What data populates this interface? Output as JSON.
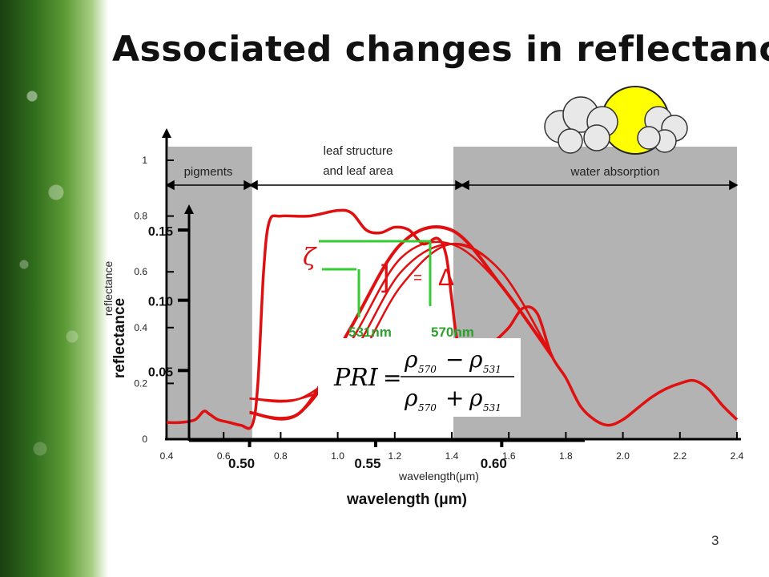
{
  "slide": {
    "title": "Associated changes in reflectance",
    "page_number": "3"
  },
  "colors": {
    "band_fill": "#b3b3b3",
    "curve": "#e01010",
    "marker": "#33cc33",
    "sun": "#ffff00"
  },
  "regions": {
    "pigments": "pigments",
    "leaf_structure_line1": "leaf structure",
    "leaf_structure_line2": "and leaf area",
    "water": "water absorption"
  },
  "annotations": {
    "zeta": "ζ",
    "bracket": "]",
    "equals": "=",
    "delta": "Δ",
    "nm531": "531nm",
    "nm570": "570nm"
  },
  "formula": {
    "lhs": "PRI",
    "equals": "=",
    "rho": "ρ",
    "sub570": "570",
    "sub531": "531",
    "minus": "−",
    "plus": "+"
  },
  "chart_data": [
    {
      "type": "line",
      "xlabel": "wavelength(μm)",
      "ylabel": "reflectance",
      "xlim": [
        0.4,
        2.4
      ],
      "ylim": [
        0,
        1
      ],
      "x_ticks": [
        "0.4",
        "0.6",
        "0.8",
        "1.0",
        "1.2",
        "1.4",
        "1.6",
        "1.8",
        "2.0",
        "2.2",
        "2.4"
      ],
      "y_ticks": [
        "0",
        "0.2",
        "0.4",
        "0.6",
        "0.8",
        "1"
      ],
      "shaded_bands": [
        [
          0.4,
          0.7
        ],
        [
          1.4,
          2.4
        ]
      ],
      "series": [
        {
          "x": [
            0.4,
            0.45,
            0.5,
            0.53,
            0.55,
            0.58,
            0.62,
            0.66,
            0.7,
            0.72,
            0.74,
            0.76,
            0.8,
            0.9,
            1.0,
            1.05,
            1.1,
            1.15,
            1.2,
            1.25,
            1.3,
            1.35,
            1.38,
            1.4,
            1.42,
            1.45,
            1.5,
            1.55,
            1.6,
            1.65,
            1.7,
            1.75,
            1.8,
            1.85,
            1.9,
            1.95,
            2.0,
            2.05,
            2.1,
            2.15,
            2.2,
            2.25,
            2.3,
            2.35,
            2.4
          ],
          "y": [
            0.06,
            0.06,
            0.07,
            0.1,
            0.09,
            0.07,
            0.06,
            0.05,
            0.05,
            0.2,
            0.6,
            0.78,
            0.8,
            0.8,
            0.82,
            0.81,
            0.75,
            0.74,
            0.76,
            0.75,
            0.7,
            0.72,
            0.66,
            0.5,
            0.35,
            0.3,
            0.3,
            0.35,
            0.4,
            0.47,
            0.45,
            0.3,
            0.22,
            0.12,
            0.07,
            0.05,
            0.07,
            0.11,
            0.15,
            0.18,
            0.2,
            0.21,
            0.18,
            0.12,
            0.07
          ]
        }
      ]
    },
    {
      "type": "line",
      "xlabel": "wavelength (μm)",
      "ylabel": "reflectance",
      "x_ticks": [
        "0.50",
        "0.55",
        "0.60"
      ],
      "y_ticks": [
        "0.05",
        "0.10",
        "0.15"
      ],
      "series": [
        {
          "x": [
            0.5,
            0.52,
            0.54,
            0.56,
            0.58,
            0.6,
            0.62
          ],
          "y": [
            0.02,
            0.02,
            0.08,
            0.14,
            0.15,
            0.11,
            0.06
          ]
        },
        {
          "x": [
            0.5,
            0.52,
            0.54,
            0.56,
            0.58,
            0.6,
            0.62
          ],
          "y": [
            0.02,
            0.02,
            0.07,
            0.13,
            0.14,
            0.11,
            0.06
          ]
        },
        {
          "x": [
            0.5,
            0.52,
            0.54,
            0.56,
            0.58,
            0.6,
            0.62
          ],
          "y": [
            0.03,
            0.03,
            0.06,
            0.12,
            0.14,
            0.12,
            0.06
          ]
        },
        {
          "x": [
            0.5,
            0.52,
            0.54,
            0.56,
            0.58,
            0.6,
            0.62
          ],
          "y": [
            0.03,
            0.03,
            0.05,
            0.11,
            0.14,
            0.12,
            0.06
          ]
        }
      ]
    }
  ]
}
